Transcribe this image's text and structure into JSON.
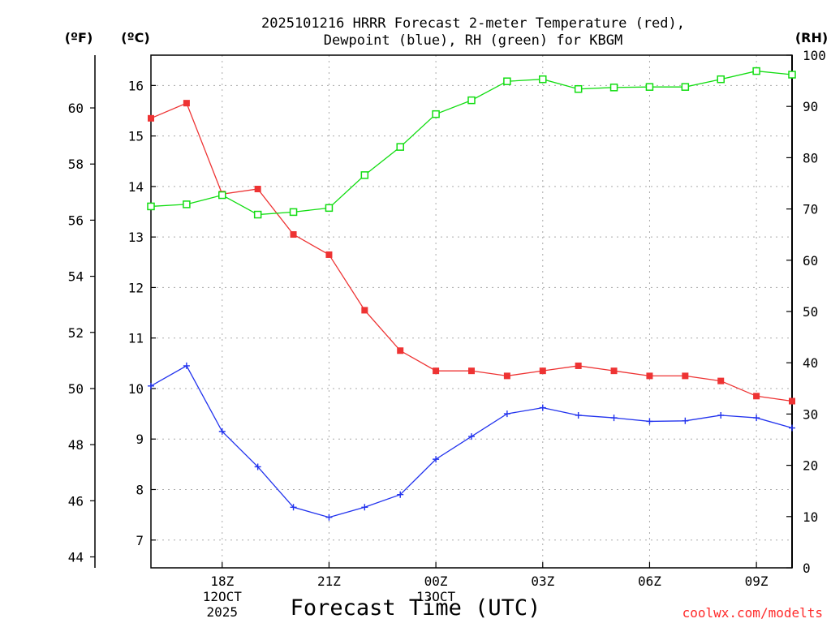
{
  "chart_data": {
    "type": "line",
    "title_line1": "2025101216 HRRR Forecast 2-meter Temperature (red),",
    "title_line2": "Dewpoint (blue), RH (green) for KBGM",
    "xlabel": "Forecast Time (UTC)",
    "credit": "coolwx.com/modelts",
    "units": {
      "fahrenheit": "(ºF)",
      "celsius": "(ºC)",
      "rh": "(RH)"
    },
    "x_hours": [
      16,
      17,
      18,
      19,
      20,
      21,
      22,
      23,
      24,
      25,
      26,
      27,
      28,
      29,
      30,
      31,
      32,
      33,
      34
    ],
    "x_range": [
      16,
      34
    ],
    "x_ticks": [
      {
        "hour": 18,
        "lines": [
          "18Z",
          "12OCT",
          "2025"
        ]
      },
      {
        "hour": 21,
        "lines": [
          "21Z"
        ]
      },
      {
        "hour": 24,
        "lines": [
          "00Z",
          "13OCT"
        ]
      },
      {
        "hour": 27,
        "lines": [
          "03Z"
        ]
      },
      {
        "hour": 30,
        "lines": [
          "06Z"
        ]
      },
      {
        "hour": 33,
        "lines": [
          "09Z"
        ]
      }
    ],
    "celsius_axis": {
      "range": [
        6.45,
        16.6
      ],
      "ticks": [
        "7",
        "8",
        "9",
        "10",
        "11",
        "12",
        "13",
        "14",
        "15",
        "16"
      ]
    },
    "fahrenheit_axis": {
      "ticks": [
        "44",
        "46",
        "48",
        "50",
        "52",
        "54",
        "56",
        "58",
        "60"
      ]
    },
    "rh_axis": {
      "range": [
        0,
        100
      ],
      "ticks": [
        "0",
        "10",
        "20",
        "30",
        "40",
        "50",
        "60",
        "70",
        "80",
        "90",
        "100"
      ]
    },
    "series": [
      {
        "name": "2-meter Temperature",
        "units": "ºC",
        "color": "#ee3333",
        "marker": "filled-square",
        "values": [
          15.35,
          15.65,
          13.85,
          13.95,
          13.05,
          12.65,
          11.55,
          10.75,
          10.35,
          10.35,
          10.25,
          10.35,
          10.45,
          10.35,
          10.25,
          10.25,
          10.15,
          9.85,
          9.75
        ]
      },
      {
        "name": "Dewpoint",
        "units": "ºC",
        "color": "#2233ee",
        "marker": "plus",
        "values": [
          10.05,
          10.45,
          9.15,
          8.45,
          7.65,
          7.45,
          7.65,
          7.9,
          8.6,
          9.05,
          9.5,
          9.62,
          9.47,
          9.42,
          9.35,
          9.36,
          9.47,
          9.42,
          9.22
        ]
      },
      {
        "name": "RH",
        "units": "%",
        "color": "#11dd11",
        "marker": "open-square",
        "values": [
          70.5,
          70.9,
          72.7,
          68.9,
          69.4,
          70.2,
          76.6,
          82.1,
          88.5,
          91.2,
          94.9,
          95.3,
          93.4,
          93.7,
          93.8,
          93.8,
          95.3,
          96.9,
          96.2
        ]
      }
    ]
  }
}
